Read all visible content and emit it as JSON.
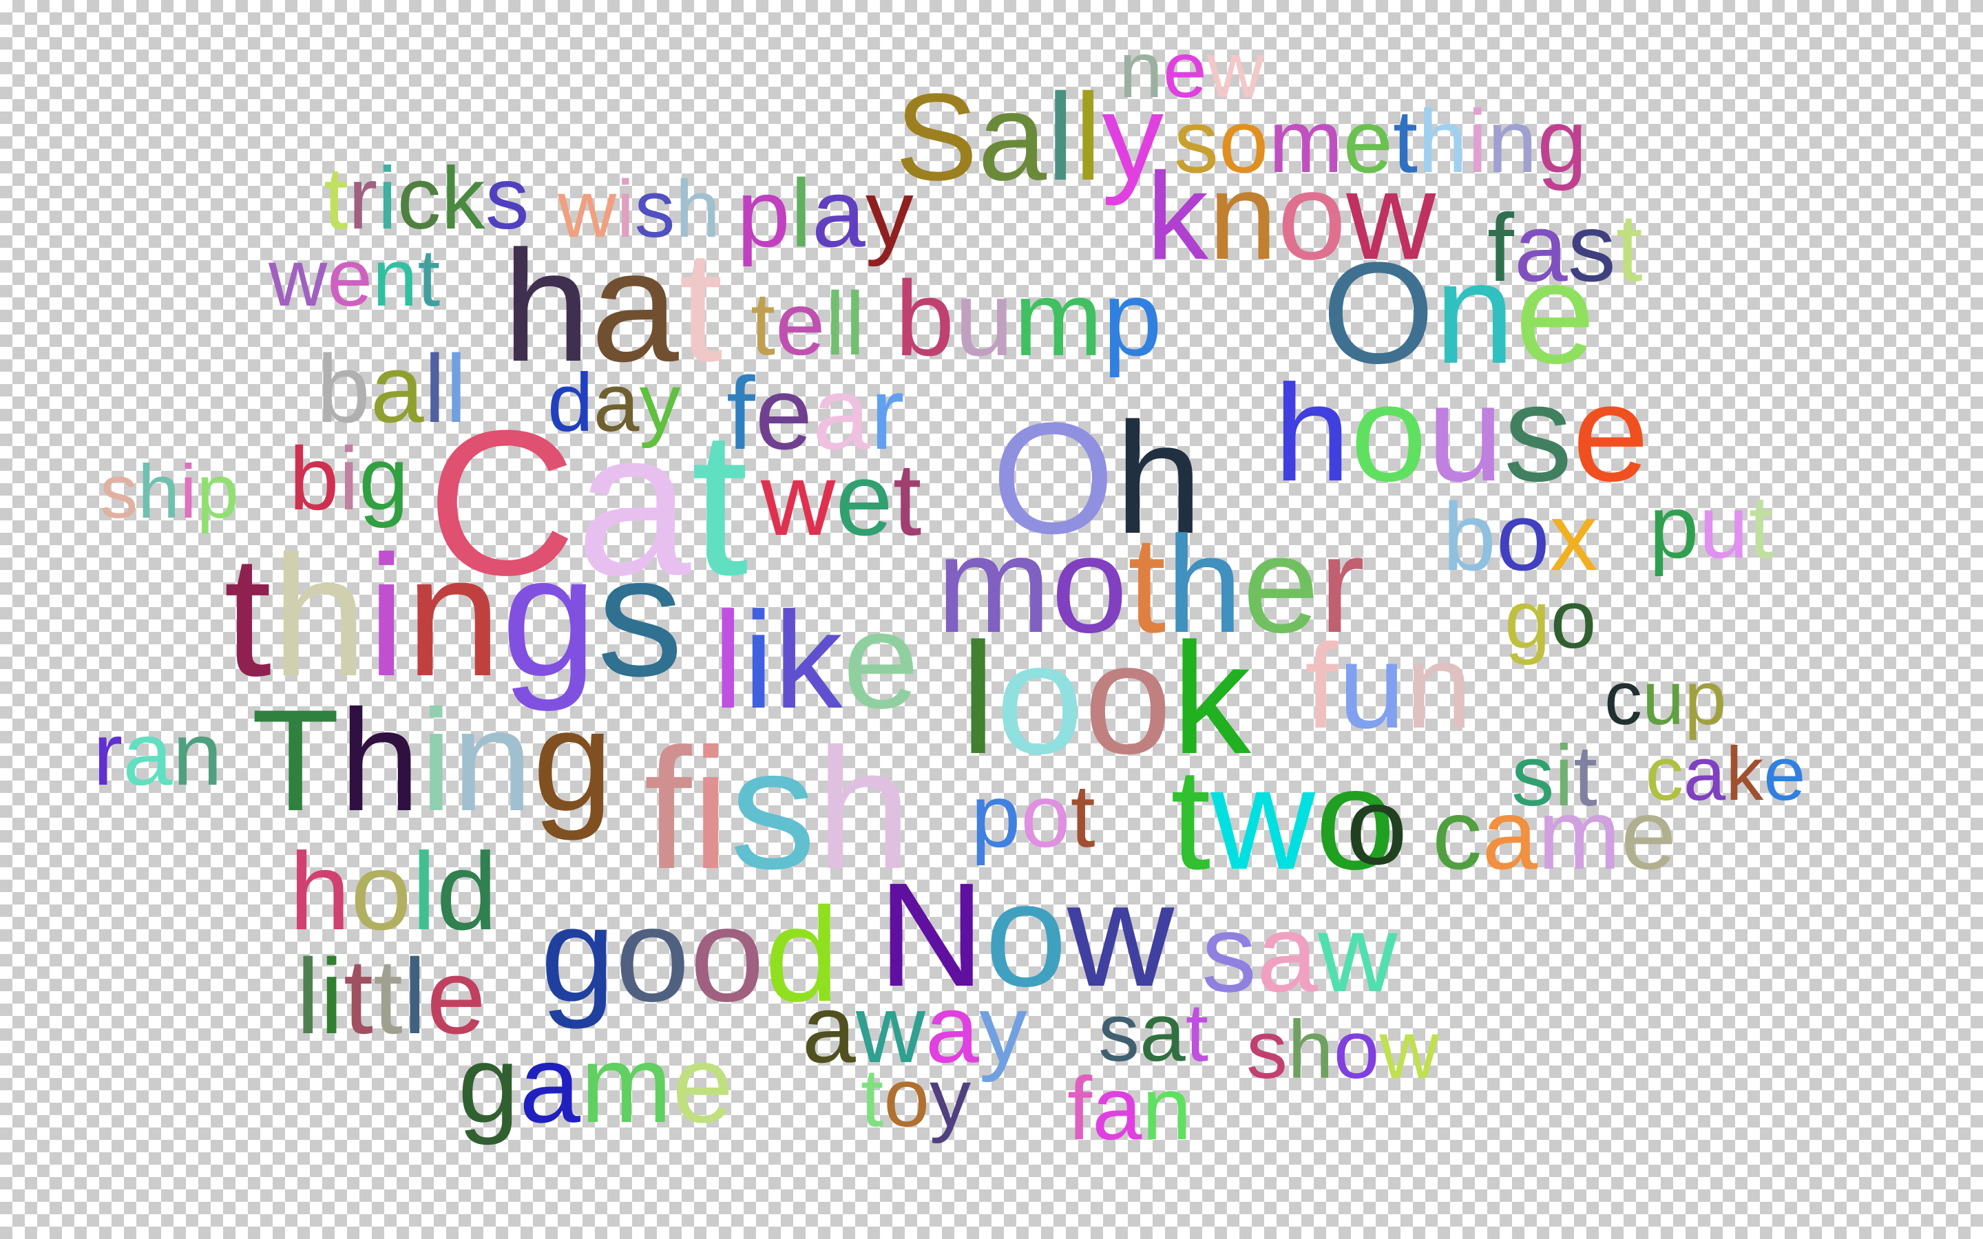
{
  "words": [
    {
      "text": "new",
      "colors": [
        "#9bb0a0",
        "#e040e0",
        "#f2c8c8"
      ]
    },
    {
      "text": "Sally",
      "colors": [
        "#9c8020",
        "#6a8a3a",
        "#4a9080",
        "#a0a020",
        "#e040e0"
      ]
    },
    {
      "text": "something",
      "colors": [
        "#c8a030",
        "#e09020",
        "#c050c0",
        "#6ac050",
        "#3070c0",
        "#a0d0f0",
        "#e0a0d0",
        "#a0a0d0",
        "#c04090"
      ]
    },
    {
      "text": "tricks",
      "colors": [
        "#c0e060",
        "#a06080",
        "#40b0a0",
        "#508040",
        "#4a8a40",
        "#5040c0"
      ]
    },
    {
      "text": "wish",
      "colors": [
        "#f0a080",
        "#e0a0c0",
        "#5050c0",
        "#a0c0d0"
      ]
    },
    {
      "text": "play",
      "colors": [
        "#c040c0",
        "#60b060",
        "#6040c0",
        "#902020"
      ]
    },
    {
      "text": "know",
      "colors": [
        "#b040d0",
        "#c08030",
        "#e07090",
        "#c03060"
      ]
    },
    {
      "text": "fast",
      "colors": [
        "#307050",
        "#8050c0",
        "#404080",
        "#c0e080"
      ]
    },
    {
      "text": "went",
      "colors": [
        "#a060c0",
        "#d060c0",
        "#30c0a0",
        "#40a0a0"
      ]
    },
    {
      "text": "hat",
      "colors": [
        "#403050",
        "#705030",
        "#f0c8c8"
      ]
    },
    {
      "text": "tell",
      "colors": [
        "#c0a050",
        "#c050b0",
        "#70c070",
        "#70c070"
      ]
    },
    {
      "text": "bump",
      "colors": [
        "#c04070",
        "#c0a0c0",
        "#40c060",
        "#3080e0"
      ]
    },
    {
      "text": "One",
      "colors": [
        "#407090",
        "#30c0c0",
        "#90e060"
      ]
    },
    {
      "text": "ball",
      "colors": [
        "#b0b0b0",
        "#90a030",
        "#5060a0",
        "#70a0e0"
      ]
    },
    {
      "text": "day",
      "colors": [
        "#2040c0",
        "#706030",
        "#60c040"
      ]
    },
    {
      "text": "fear",
      "colors": [
        "#3080c0",
        "#704090",
        "#f0c0e0",
        "#60a0f0"
      ]
    },
    {
      "text": "house",
      "colors": [
        "#4040e0",
        "#60e060",
        "#c080e0",
        "#408060",
        "#f05020"
      ]
    },
    {
      "text": "ship",
      "colors": [
        "#e0b0a0",
        "#70c0b0",
        "#e070c0",
        "#90e070"
      ]
    },
    {
      "text": "big",
      "colors": [
        "#d03050",
        "#c080a0",
        "#30a040"
      ]
    },
    {
      "text": "Cat",
      "colors": [
        "#e05070",
        "#e8c0f0",
        "#60e0c0"
      ]
    },
    {
      "text": "wet",
      "colors": [
        "#e03050",
        "#30a070",
        "#a04070"
      ]
    },
    {
      "text": "Oh",
      "colors": [
        "#9090e0",
        "#203040"
      ]
    },
    {
      "text": "box",
      "colors": [
        "#90c0e0",
        "#4040c0",
        "#f0b020"
      ]
    },
    {
      "text": "put",
      "colors": [
        "#30a050",
        "#e090f0",
        "#c0e0a0"
      ]
    },
    {
      "text": "things",
      "colors": [
        "#902050",
        "#d0d0b0",
        "#c050d0",
        "#c04040",
        "#8050e0",
        "#307090"
      ]
    },
    {
      "text": "mother",
      "colors": [
        "#8060c0",
        "#8040c0",
        "#e08040",
        "#4090c0",
        "#70c060",
        "#c06070"
      ]
    },
    {
      "text": "go",
      "colors": [
        "#c0c040",
        "#306030"
      ]
    },
    {
      "text": "like",
      "colors": [
        "#c050e0",
        "#4060e0",
        "#6050d0",
        "#90d0a0"
      ]
    },
    {
      "text": "look",
      "colors": [
        "#408030",
        "#90e0e0",
        "#c08080",
        "#20b020"
      ]
    },
    {
      "text": "fun",
      "colors": [
        "#f0c0c0",
        "#80a0f0",
        "#e0c0c0"
      ]
    },
    {
      "text": "cup",
      "colors": [
        "#203030",
        "#60a040",
        "#a0a040"
      ]
    },
    {
      "text": "ran",
      "colors": [
        "#6030d0",
        "#60e0c0",
        "#50a080"
      ]
    },
    {
      "text": "Thing",
      "colors": [
        "#308040",
        "#301040",
        "#90d0b0",
        "#a0c0d0",
        "#805020"
      ]
    },
    {
      "text": "fish",
      "colors": [
        "#d09090",
        "#e09090",
        "#60c0d0",
        "#e0c0e0"
      ]
    },
    {
      "text": "sit",
      "colors": [
        "#30a070",
        "#70b070",
        "#8080a0"
      ]
    },
    {
      "text": "cake",
      "colors": [
        "#b0c040",
        "#8040c0",
        "#a05030",
        "#3080e0"
      ]
    },
    {
      "text": "pot",
      "colors": [
        "#4080e0",
        "#e090e0",
        "#a05030"
      ]
    },
    {
      "text": "two",
      "colors": [
        "#30c030",
        "#00e0e0",
        "#20a020"
      ]
    },
    {
      "text": "o",
      "colors": [
        "#204020"
      ]
    },
    {
      "text": "came",
      "colors": [
        "#50a040",
        "#f09040",
        "#d0a0e0",
        "#b0b090"
      ]
    },
    {
      "text": "hold",
      "colors": [
        "#d04070",
        "#b0b060",
        "#40c090",
        "#308050"
      ]
    },
    {
      "text": "good",
      "colors": [
        "#2040a0",
        "#506080",
        "#a06080",
        "#90e020"
      ]
    },
    {
      "text": "Now",
      "colors": [
        "#6010a0",
        "#40a0c0",
        "#4040a0"
      ]
    },
    {
      "text": "saw",
      "colors": [
        "#9080e0",
        "#f0a0c0",
        "#50e0b0"
      ]
    },
    {
      "text": "little",
      "colors": [
        "#508050",
        "#308030",
        "#a05060",
        "#a0a090",
        "#406080",
        "#c04060"
      ]
    },
    {
      "text": "away",
      "colors": [
        "#505020",
        "#30a090",
        "#e040e0",
        "#70a0e0"
      ]
    },
    {
      "text": "sat",
      "colors": [
        "#406070",
        "#307040",
        "#c050e0"
      ]
    },
    {
      "text": "show",
      "colors": [
        "#c04070",
        "#70a060",
        "#8040e0",
        "#c0e050"
      ]
    },
    {
      "text": "game",
      "colors": [
        "#306030",
        "#2020c0",
        "#60d060",
        "#c0e080"
      ]
    },
    {
      "text": "toy",
      "colors": [
        "#80e080",
        "#b07030",
        "#504080"
      ]
    },
    {
      "text": "fan",
      "colors": [
        "#e060c0",
        "#e040e0",
        "#60e060"
      ]
    }
  ]
}
